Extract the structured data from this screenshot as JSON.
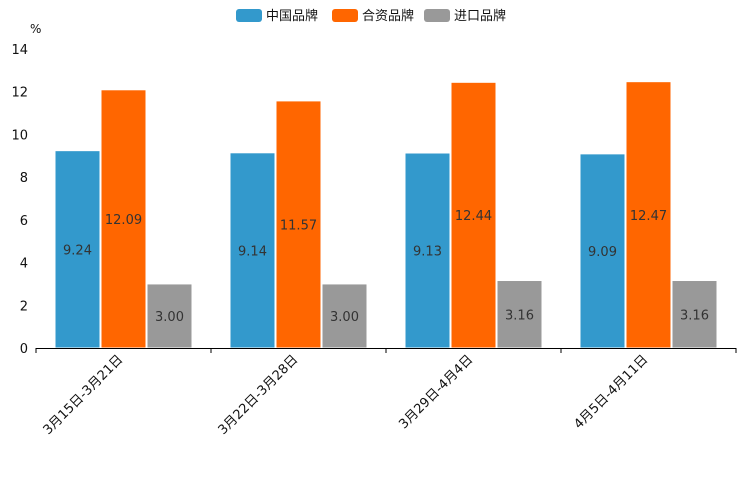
{
  "chart_data": {
    "type": "bar",
    "title": "",
    "xlabel": "",
    "ylabel": "%",
    "ylim": [
      0,
      14
    ],
    "yticks": [
      0,
      2,
      4,
      6,
      8,
      10,
      12,
      14
    ],
    "grid": false,
    "legend_position": "top-center",
    "categories": [
      "3月15日-3月21日",
      "3月22日-3月28日",
      "3月29日-4月4日",
      "4月5日-4月11日"
    ],
    "series": [
      {
        "name": "中国品牌",
        "color": "#3399cc",
        "values": [
          9.24,
          9.14,
          9.13,
          9.09
        ],
        "labels": [
          "9.24",
          "9.14",
          "9.13",
          "9.09"
        ]
      },
      {
        "name": "合资品牌",
        "color": "#ff6600",
        "values": [
          12.09,
          11.57,
          12.44,
          12.47
        ],
        "labels": [
          "12.09",
          "11.57",
          "12.44",
          "12.47"
        ]
      },
      {
        "name": "进口品牌",
        "color": "#999999",
        "values": [
          3.0,
          3.0,
          3.16,
          3.16
        ],
        "labels": [
          "3.00",
          "3.00",
          "3.16",
          "3.16"
        ]
      }
    ]
  }
}
